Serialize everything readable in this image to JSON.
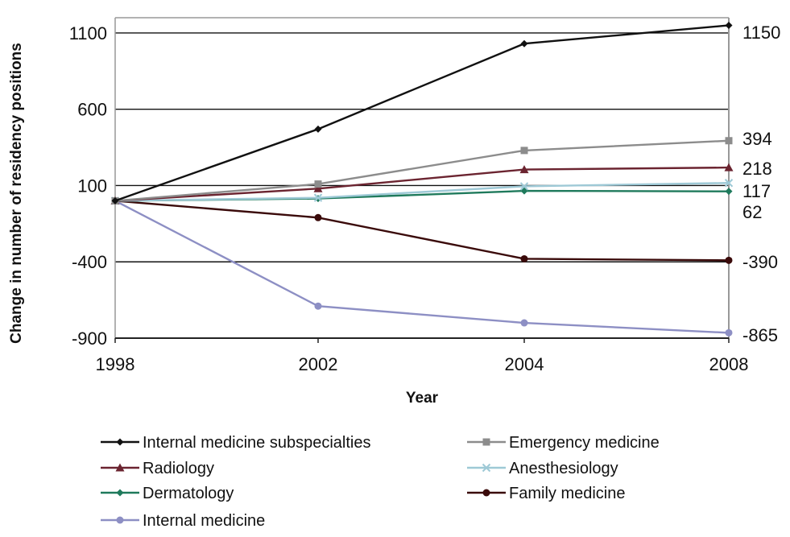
{
  "chart_data": {
    "type": "line",
    "xlabel": "Year",
    "ylabel": "Change in number of residency positions",
    "x": [
      1998,
      2002,
      2004,
      2008
    ],
    "x_ticks": [
      "1998",
      "2002",
      "2004",
      "2008"
    ],
    "y_ticks": [
      1100,
      600,
      100,
      -400,
      -900
    ],
    "y_tick_labels": [
      "1100",
      "600",
      "100",
      "-400",
      "-900"
    ],
    "ylim": [
      -900,
      1200
    ],
    "grid": "horizontal",
    "legend_position": "bottom",
    "series": [
      {
        "name": "Internal medicine subspecialties",
        "values": [
          0,
          470,
          1030,
          1150
        ],
        "end_label": "1150",
        "color": "#111111",
        "marker": "diamond"
      },
      {
        "name": "Emergency medicine",
        "values": [
          0,
          110,
          330,
          394
        ],
        "end_label": "394",
        "color": "#8c8c8c",
        "marker": "square"
      },
      {
        "name": "Radiology",
        "values": [
          0,
          80,
          205,
          218
        ],
        "end_label": "218",
        "color": "#6b2430",
        "marker": "triangle"
      },
      {
        "name": "Anesthesiology",
        "values": [
          0,
          20,
          95,
          117
        ],
        "end_label": "117",
        "color": "#9ec9d6",
        "marker": "x"
      },
      {
        "name": "Dermatology",
        "values": [
          0,
          15,
          65,
          62
        ],
        "end_label": "62",
        "color": "#1f7a5c",
        "marker": "diamond"
      },
      {
        "name": "Family medicine",
        "values": [
          0,
          -110,
          -380,
          -390
        ],
        "end_label": "-390",
        "color": "#3a0a0a",
        "marker": "circle"
      },
      {
        "name": "Internal medicine",
        "values": [
          0,
          -690,
          -800,
          -865
        ],
        "end_label": "-865",
        "color": "#8d8fc4",
        "marker": "circle"
      }
    ]
  }
}
